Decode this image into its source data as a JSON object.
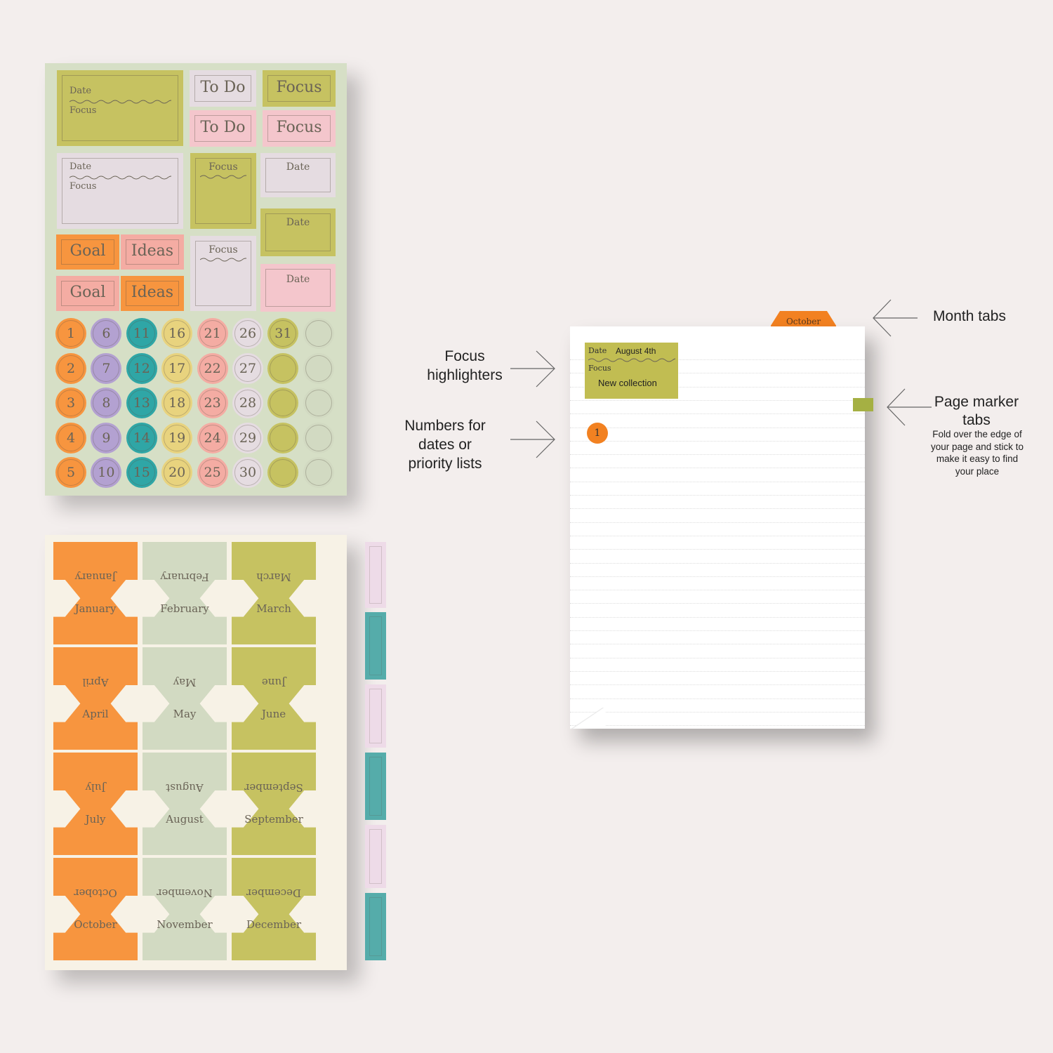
{
  "colors": {
    "olive": "#c6c261",
    "pink": "#f4c6cc",
    "lavender": "#e5dce1",
    "orange": "#f7953f",
    "salmon": "#f4aca3",
    "purple": "#b3a1d1",
    "teal": "#2fa6a6",
    "yellow": "#e8d37e",
    "sage": "#d2dac2"
  },
  "sheet1": {
    "date_label": "Date",
    "focus_label": "Focus",
    "todo_label": "To Do",
    "goal_label": "Goal",
    "ideas_label": "Ideas",
    "numbers": [
      "1",
      "2",
      "3",
      "4",
      "5",
      "6",
      "7",
      "8",
      "9",
      "10",
      "11",
      "12",
      "13",
      "14",
      "15",
      "16",
      "17",
      "18",
      "19",
      "20",
      "21",
      "22",
      "23",
      "24",
      "25",
      "26",
      "27",
      "28",
      "29",
      "30",
      "31"
    ]
  },
  "sheet2": {
    "months": [
      "January",
      "February",
      "March",
      "April",
      "May",
      "June",
      "July",
      "August",
      "September",
      "October",
      "November",
      "December"
    ]
  },
  "page": {
    "tab_month": "October",
    "highlighter": {
      "date_label": "Date",
      "date_value": "August 4th",
      "focus_label": "Focus",
      "focus_value": "New collection"
    },
    "number": "1"
  },
  "annotations": {
    "focus": "Focus highlighters",
    "numbers": "Numbers for dates or priority lists",
    "month_tabs": "Month tabs",
    "page_marker_title": "Page marker tabs",
    "page_marker_desc": "Fold over the edge of your page and stick to make it easy to find your place"
  }
}
